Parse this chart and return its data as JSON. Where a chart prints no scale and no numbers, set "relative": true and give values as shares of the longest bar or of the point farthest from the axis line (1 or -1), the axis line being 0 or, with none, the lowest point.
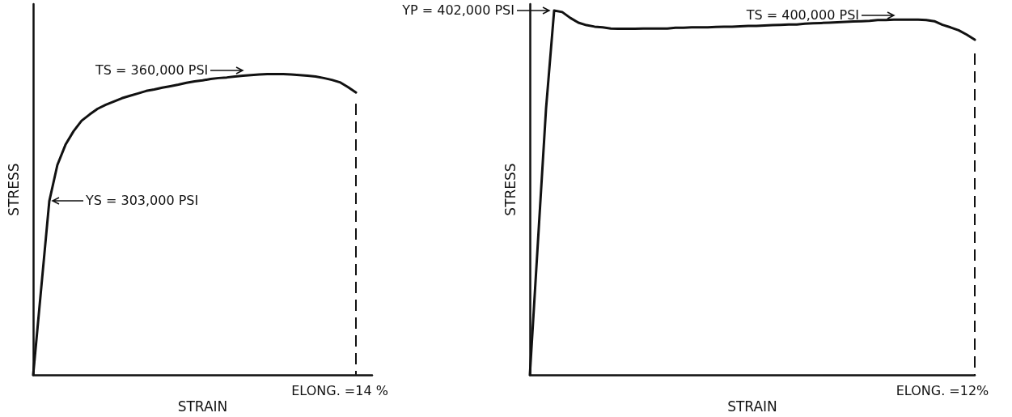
{
  "chart_data": [
    {
      "type": "line",
      "relative": true,
      "xlabel": "STRAIN",
      "ylabel": "STRESS",
      "marker": "none",
      "grid": false,
      "categories": [
        null,
        null,
        null,
        null,
        null,
        null,
        null,
        null,
        null,
        null,
        null,
        null,
        null,
        null,
        null,
        null,
        null,
        null,
        null,
        null,
        null,
        null,
        null,
        null,
        null,
        null,
        null,
        null,
        null,
        null,
        null,
        null,
        null,
        null,
        null,
        null,
        null,
        null,
        null,
        null,
        null,
        null,
        null
      ],
      "series": [
        {
          "color": "#111111",
          "values": [
            0,
            0.289,
            0.578,
            0.698,
            0.765,
            0.81,
            0.845,
            0.866,
            0.885,
            0.898,
            0.909,
            0.92,
            0.928,
            0.936,
            0.944,
            0.949,
            0.955,
            0.96,
            0.965,
            0.971,
            0.976,
            0.979,
            0.984,
            0.987,
            0.989,
            0.992,
            0.995,
            0.997,
            0.999,
            1,
            1,
            1,
            0.999,
            0.997,
            0.995,
            0.992,
            0.987,
            0.981,
            0.973,
            0.957,
            0.939,
            null,
            null
          ]
        }
      ],
      "annotations": [
        "TS = 360,000 PSI",
        "YS = 303,000 PSI",
        "ELONG. =14 %"
      ]
    },
    {
      "type": "line",
      "relative": true,
      "xlabel": "STRAIN",
      "ylabel": "STRESS",
      "marker": "none",
      "grid": false,
      "categories": [
        null,
        null,
        null,
        null,
        null,
        null,
        null,
        null,
        null,
        null,
        null,
        null,
        null,
        null,
        null,
        null,
        null,
        null,
        null,
        null,
        null,
        null,
        null,
        null,
        null,
        null,
        null,
        null,
        null,
        null,
        null,
        null,
        null,
        null,
        null,
        null,
        null,
        null,
        null,
        null,
        null,
        null,
        null,
        null,
        null,
        null,
        null,
        null,
        null,
        null,
        null,
        null,
        null,
        null,
        null,
        null
      ],
      "series": [
        {
          "color": "#111111",
          "values": [
            0,
            0.366,
            0.731,
            1,
            0.996,
            0.98,
            0.967,
            0.96,
            0.956,
            0.954,
            0.951,
            0.95,
            0.95,
            0.95,
            0.951,
            0.951,
            0.951,
            0.951,
            0.953,
            0.953,
            0.954,
            0.954,
            0.954,
            0.955,
            0.956,
            0.956,
            0.957,
            0.958,
            0.958,
            0.959,
            0.96,
            0.961,
            0.962,
            0.962,
            0.964,
            0.965,
            0.966,
            0.967,
            0.968,
            0.969,
            0.97,
            0.971,
            0.972,
            0.974,
            0.974,
            0.975,
            0.975,
            0.975,
            0.975,
            0.974,
            0.971,
            0.961,
            0.954,
            0.946,
            0.934,
            0.92
          ]
        }
      ],
      "annotations": [
        "YP = 402,000 PSI",
        "TS = 400,000 PSI",
        "ELONG. =12%"
      ]
    }
  ]
}
